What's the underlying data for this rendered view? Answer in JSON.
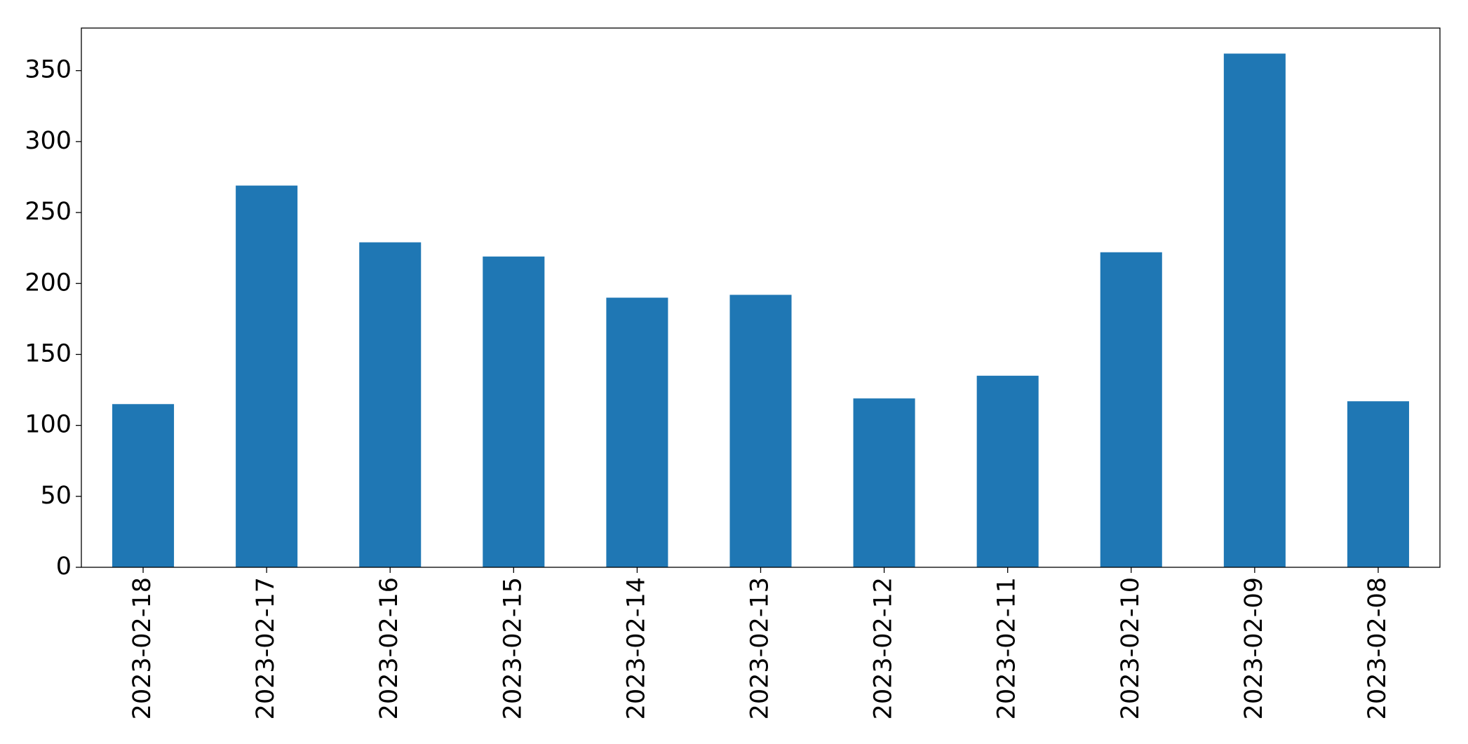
{
  "chart_data": {
    "type": "bar",
    "categories": [
      "2023-02-18",
      "2023-02-17",
      "2023-02-16",
      "2023-02-15",
      "2023-02-14",
      "2023-02-13",
      "2023-02-12",
      "2023-02-11",
      "2023-02-10",
      "2023-02-09",
      "2023-02-08"
    ],
    "values": [
      115,
      269,
      229,
      219,
      190,
      192,
      119,
      135,
      222,
      362,
      117
    ],
    "color": "#1f77b4",
    "ylim": [
      0,
      380
    ],
    "yticks": [
      0,
      50,
      100,
      150,
      200,
      250,
      300,
      350
    ],
    "grid": false
  }
}
